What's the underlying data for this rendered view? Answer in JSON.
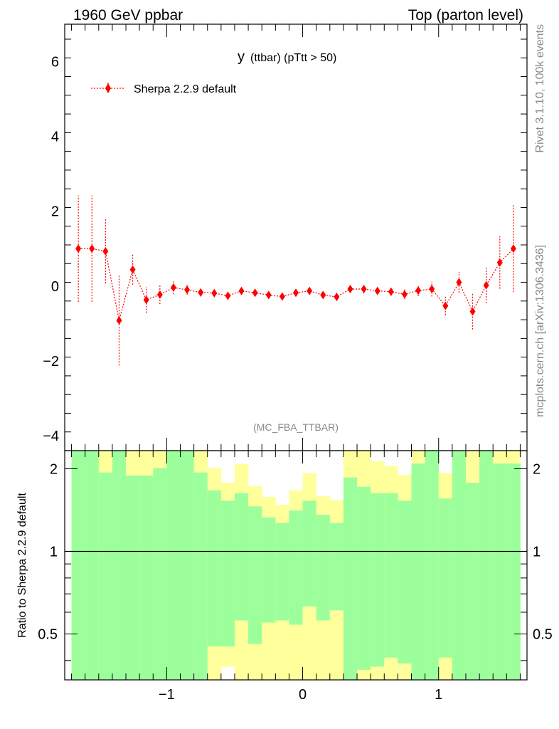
{
  "header": {
    "left": "1960 GeV ppbar",
    "right": "Top (parton level)"
  },
  "side_labels": {
    "rivet": "Rivet 3.1.10,  100k events",
    "mcplots": "mcplots.cern.ch [arXiv:1306.3436]"
  },
  "chart_data": [
    {
      "type": "scatter",
      "title_main": "y",
      "title_sub": "(ttbar) (pTtt > 50)",
      "watermark": "(MC_FBA_TTBAR)",
      "xlim": [
        -1.75,
        1.65
      ],
      "ylim": [
        -4.4,
        7.0
      ],
      "y_ticks": [
        -4,
        -2,
        0,
        2,
        4,
        6
      ],
      "y_tick_labels": [
        "−4",
        "−2",
        "0",
        "2",
        "4",
        "6"
      ],
      "legend_position": "top-left",
      "series": [
        {
          "name": "Sherpa 2.2.9 default",
          "color": "#ff0000",
          "x": [
            -1.65,
            -1.55,
            -1.45,
            -1.35,
            -1.25,
            -1.15,
            -1.05,
            -0.95,
            -0.85,
            -0.75,
            -0.65,
            -0.55,
            -0.45,
            -0.35,
            -0.25,
            -0.15,
            -0.05,
            0.05,
            0.15,
            0.25,
            0.35,
            0.45,
            0.55,
            0.65,
            0.75,
            0.85,
            0.95,
            1.05,
            1.15,
            1.25,
            1.35,
            1.45,
            1.55
          ],
          "y": [
            1.0,
            1.0,
            0.93,
            -0.92,
            0.44,
            -0.37,
            -0.23,
            -0.04,
            -0.1,
            -0.17,
            -0.19,
            -0.26,
            -0.13,
            -0.18,
            -0.24,
            -0.28,
            -0.18,
            -0.13,
            -0.24,
            -0.29,
            -0.08,
            -0.08,
            -0.13,
            -0.15,
            -0.22,
            -0.12,
            -0.08,
            -0.53,
            0.1,
            -0.68,
            0.02,
            0.63,
            1.0
          ],
          "err": [
            1.42,
            1.42,
            0.86,
            1.2,
            0.4,
            0.35,
            0.25,
            0.18,
            0.13,
            0.11,
            0.11,
            0.11,
            0.1,
            0.1,
            0.1,
            0.1,
            0.1,
            0.1,
            0.1,
            0.1,
            0.1,
            0.11,
            0.11,
            0.11,
            0.13,
            0.15,
            0.2,
            0.25,
            0.28,
            0.48,
            0.48,
            0.7,
            1.16
          ]
        }
      ]
    },
    {
      "type": "area",
      "ylabel": "Ratio to Sherpa 2.2.9 default",
      "xlim": [
        -1.75,
        1.65
      ],
      "ylim": [
        0.34,
        2.33
      ],
      "x_ticks": [
        -1,
        0,
        1
      ],
      "x_tick_labels": [
        "−1",
        "0",
        "1"
      ],
      "y_ticks": [
        0.5,
        1,
        2
      ],
      "y_tick_labels": [
        "0.5",
        "1",
        "2"
      ],
      "reference_line": 1,
      "green_color": "#9cff9c",
      "yellow_color": "#ffff9c",
      "bin_edges": [
        -1.7,
        -1.6,
        -1.5,
        -1.4,
        -1.3,
        -1.2,
        -1.1,
        -1.0,
        -0.9,
        -0.8,
        -0.7,
        -0.6,
        -0.5,
        -0.4,
        -0.3,
        -0.2,
        -0.1,
        0.0,
        0.1,
        0.2,
        0.3,
        0.4,
        0.5,
        0.6,
        0.7,
        0.8,
        0.9,
        1.0,
        1.1,
        1.2,
        1.3,
        1.4,
        1.5,
        1.6
      ],
      "green_high": [
        2.33,
        2.33,
        1.94,
        2.33,
        1.89,
        1.89,
        2.01,
        2.33,
        2.33,
        1.94,
        1.67,
        1.53,
        1.63,
        1.46,
        1.33,
        1.27,
        1.41,
        1.53,
        1.36,
        1.27,
        1.86,
        1.72,
        1.63,
        1.63,
        1.53,
        2.09,
        2.33,
        1.56,
        2.33,
        1.78,
        2.33,
        2.09,
        2.09
      ],
      "yellow_high": [
        2.33,
        2.33,
        2.33,
        2.33,
        2.33,
        2.33,
        2.33,
        2.33,
        2.33,
        2.33,
        2.02,
        1.78,
        2.08,
        1.73,
        1.58,
        1.48,
        1.67,
        1.93,
        1.59,
        1.54,
        2.33,
        2.33,
        2.13,
        2.05,
        1.9,
        2.33,
        2.33,
        1.93,
        2.33,
        2.33,
        2.33,
        2.33,
        2.33
      ],
      "yellow_top_white": [
        false,
        false,
        false,
        false,
        false,
        false,
        false,
        false,
        false,
        false,
        false,
        false,
        false,
        false,
        false,
        false,
        false,
        false,
        false,
        false,
        false,
        false,
        false,
        false,
        false,
        false,
        false,
        false,
        false,
        false,
        false,
        false,
        false
      ],
      "green_low": [
        0.34,
        0.34,
        0.34,
        0.34,
        0.34,
        0.34,
        0.34,
        0.34,
        0.34,
        0.34,
        0.45,
        0.45,
        0.56,
        0.46,
        0.55,
        0.56,
        0.54,
        0.63,
        0.56,
        0.61,
        0.34,
        0.37,
        0.38,
        0.41,
        0.39,
        0.34,
        0.34,
        0.41,
        0.34,
        0.34,
        0.34,
        0.34,
        0.34
      ],
      "yellow_low": [
        0.34,
        0.34,
        0.34,
        0.34,
        0.34,
        0.34,
        0.34,
        0.34,
        0.34,
        0.34,
        0.34,
        0.38,
        0.34,
        0.34,
        0.34,
        0.34,
        0.34,
        0.34,
        0.34,
        0.34,
        0.34,
        0.34,
        0.34,
        0.34,
        0.34,
        0.34,
        0.34,
        0.34,
        0.34,
        0.34,
        0.34,
        0.34,
        0.34
      ]
    }
  ]
}
